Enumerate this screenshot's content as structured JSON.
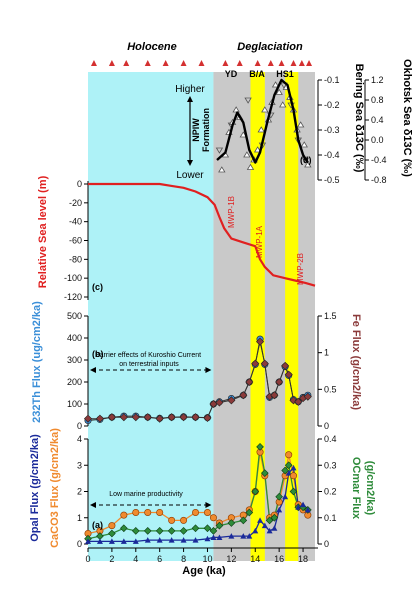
{
  "chart_data": [
    {
      "id": "top",
      "type": "line",
      "panel_label": "(d)",
      "header_left": "Holocene",
      "header_right": "Deglaciation",
      "event_labels": [
        "YD",
        "B/A",
        "HS1"
      ],
      "ylabel_right_1": "Bering Sea δ13C (‰)",
      "ylabel_right_2": "Okhotsk Sea δ13C (‰)",
      "ylim_right_1": [
        -0.5,
        -0.1
      ],
      "ylim_right_2": [
        -0.8,
        1.2
      ],
      "yticks_right_1": [
        "-0.1",
        "-0.2",
        "-0.3",
        "-0.4",
        "-0.5"
      ],
      "yticks_right_2": [
        "1.2",
        "0.8",
        "0.4",
        "0.0",
        "-0.4",
        "-0.8"
      ],
      "npiw_higher": "Higher",
      "npiw_lower": "Lower",
      "npiw_label_1": "NPIW",
      "npiw_label_2": "Formation",
      "age_markers": [
        0.5,
        2,
        3.2,
        5,
        6.5,
        8,
        9.5,
        11.5,
        12.7,
        14.2,
        15.3,
        16.2,
        17.2,
        17.9,
        18.5
      ],
      "series": [
        {
          "name": "Bering smooth",
          "x": [
            10.8,
            11.5,
            12.1,
            12.5,
            13.0,
            13.5,
            14.0,
            14.4,
            15.0,
            15.6,
            16.2,
            16.7,
            17.2,
            17.6,
            18.0,
            18.4
          ],
          "values": [
            -0.42,
            -0.39,
            -0.28,
            -0.23,
            -0.27,
            -0.38,
            -0.43,
            -0.39,
            -0.27,
            -0.16,
            -0.1,
            -0.12,
            -0.22,
            -0.34,
            -0.4,
            -0.43
          ]
        },
        {
          "name": "Bering points",
          "x": [
            11.2,
            11.5,
            11.8,
            12.1,
            12.4,
            12.7,
            13.0,
            13.3,
            13.6,
            13.9,
            14.2,
            14.5,
            14.8,
            15.1,
            15.4,
            15.7,
            16.0,
            16.3,
            16.6,
            16.9,
            17.2,
            17.5,
            17.8,
            18.1,
            18.4
          ],
          "values": [
            -0.46,
            -0.4,
            -0.31,
            -0.27,
            -0.22,
            -0.25,
            -0.32,
            -0.4,
            -0.45,
            -0.42,
            -0.38,
            -0.3,
            -0.22,
            -0.26,
            -0.19,
            -0.12,
            -0.15,
            -0.2,
            -0.13,
            -0.17,
            -0.22,
            -0.3,
            -0.28,
            -0.36,
            -0.44
          ]
        },
        {
          "name": "Okhotsk points",
          "x": [
            11.0,
            12.0,
            13.4,
            14.6,
            15.3,
            16.4,
            17.0,
            17.6,
            18.2
          ],
          "values": [
            -0.2,
            0.3,
            0.8,
            -0.1,
            0.5,
            1.1,
            0.7,
            0.0,
            -0.4
          ]
        }
      ]
    },
    {
      "id": "sealevel",
      "type": "line",
      "panel_label": "(c)",
      "ylabel": "Relative Sea level (m)",
      "ylim": [
        -120,
        0
      ],
      "yticks": [
        "0",
        "-20",
        "-40",
        "-60",
        "-80",
        "-100",
        "-120"
      ],
      "annotations": [
        "MWP-1B",
        "MWP-1A",
        "MWP-2B"
      ],
      "x": [
        0,
        6,
        7,
        8,
        9,
        10,
        10.6,
        11.0,
        11.4,
        12.0,
        13.0,
        14.0,
        14.4,
        14.8,
        15.5,
        16.5,
        17.5,
        18.2,
        19.0
      ],
      "values": [
        0,
        0,
        -2,
        -4,
        -8,
        -14,
        -22,
        -35,
        -47,
        -58,
        -62,
        -66,
        -80,
        -88,
        -97,
        -100,
        -103,
        -105,
        -108
      ]
    },
    {
      "id": "thfe",
      "type": "line",
      "panel_label": "(b)",
      "annotation": "Barrier effects of Kuroshio Current on terrestrial inputs",
      "ylabel_left": "232Th Flux (ug/cm2/ka)",
      "ylabel_right": "Fe Flux (g/cm2/ka)",
      "ylim_left": [
        0,
        500
      ],
      "ylim_right": [
        0,
        1.5
      ],
      "yticks_left": [
        "0",
        "100",
        "200",
        "300",
        "400",
        "500"
      ],
      "yticks_right": [
        "0",
        "0.5",
        "1",
        "1.5"
      ],
      "x": [
        0,
        1,
        2,
        3,
        4,
        5,
        6,
        7,
        8,
        9,
        10,
        10.5,
        11,
        12,
        13,
        13.5,
        14,
        14.4,
        14.8,
        15.2,
        15.6,
        16,
        16.5,
        16.8,
        17.2,
        17.6,
        18,
        18.4
      ],
      "series": [
        {
          "name": "Th",
          "color": "#3b8fd8",
          "values": [
            25,
            30,
            40,
            45,
            45,
            40,
            35,
            40,
            42,
            40,
            38,
            100,
            110,
            125,
            140,
            200,
            280,
            395,
            280,
            130,
            140,
            200,
            270,
            230,
            120,
            110,
            130,
            140
          ]
        },
        {
          "name": "Fe",
          "color": "#8b3a3a",
          "values": [
            0.1,
            0.1,
            0.12,
            0.12,
            0.12,
            0.12,
            0.1,
            0.12,
            0.12,
            0.12,
            0.11,
            0.3,
            0.32,
            0.35,
            0.42,
            0.6,
            0.85,
            1.15,
            0.85,
            0.4,
            0.42,
            0.6,
            0.82,
            0.7,
            0.35,
            0.33,
            0.38,
            0.4
          ]
        }
      ]
    },
    {
      "id": "bottom",
      "type": "line",
      "panel_label": "(a)",
      "annotation": "Low marine productivity",
      "xlabel": "Age (ka)",
      "xlim": [
        0,
        19
      ],
      "xticks": [
        "0",
        "2",
        "4",
        "6",
        "8",
        "10",
        "12",
        "14",
        "16",
        "18"
      ],
      "ylabel_left_1": "Opal Flux (g/cm2/ka)",
      "ylabel_left_2": "CaCO3 Flux (g/cm2/ka)",
      "ylabel_right_1": "OCmar Flux",
      "ylabel_right_2": "(g/cm2/ka)",
      "ylim_left": [
        0,
        4
      ],
      "ylim_right": [
        0,
        0.4
      ],
      "yticks_left": [
        "0",
        "1",
        "2",
        "3",
        "4"
      ],
      "yticks_right": [
        "0",
        "0.1",
        "0.2",
        "0.3",
        "0.4"
      ],
      "x": [
        0,
        1,
        2,
        3,
        4,
        5,
        6,
        7,
        8,
        9,
        10,
        10.5,
        11,
        12,
        13,
        13.5,
        14,
        14.4,
        14.8,
        15.2,
        15.6,
        16,
        16.5,
        16.8,
        17.2,
        17.6,
        18,
        18.4
      ],
      "series": [
        {
          "name": "CaCO3",
          "color": "#f08a2e",
          "values": [
            0.4,
            0.5,
            0.7,
            1.1,
            1.2,
            1.2,
            1.2,
            0.9,
            0.9,
            1.2,
            1.2,
            1.0,
            0.8,
            1.0,
            1.1,
            1.3,
            2.0,
            3.5,
            2.6,
            1.0,
            1.1,
            1.6,
            2.6,
            3.4,
            2.6,
            1.5,
            1.3,
            1.1
          ]
        },
        {
          "name": "OCmar",
          "color": "#2e8b3a",
          "values": [
            0.02,
            0.03,
            0.04,
            0.06,
            0.05,
            0.05,
            0.05,
            0.05,
            0.05,
            0.06,
            0.06,
            0.05,
            0.07,
            0.08,
            0.09,
            0.12,
            0.2,
            0.37,
            0.27,
            0.09,
            0.1,
            0.18,
            0.28,
            0.3,
            0.2,
            0.14,
            0.14,
            0.13
          ]
        },
        {
          "name": "Opal",
          "color": "#1a2a9a",
          "values": [
            0.1,
            0.1,
            0.1,
            0.1,
            0.1,
            0.15,
            0.15,
            0.15,
            0.15,
            0.15,
            0.2,
            0.25,
            0.25,
            0.3,
            0.3,
            0.3,
            0.5,
            0.9,
            0.7,
            0.5,
            0.6,
            1.3,
            1.8,
            2.7,
            2.9,
            1.4,
            1.5,
            1.3
          ]
        }
      ]
    }
  ]
}
